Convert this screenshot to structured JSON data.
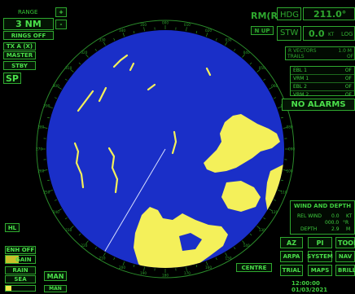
{
  "range": {
    "label": "RANGE",
    "value": "3 NM",
    "rings": "RINGS OFF",
    "plus": "+",
    "minus": "-"
  },
  "tx": {
    "label": "TX A (X)",
    "master": "MASTER",
    "stby": "STBY",
    "sp": "SP"
  },
  "mode": {
    "motion": "RM(R)",
    "orientation": "N UP"
  },
  "heading": {
    "label": "HDG",
    "value": "211.0°"
  },
  "speed": {
    "label": "STW",
    "value": "0.0",
    "unit": "KT",
    "source": "LOG"
  },
  "vectors": {
    "label": "R VECTORS",
    "value": "1.0 M",
    "trails_label": "TRAILS",
    "trails_value": "OF"
  },
  "ebl_vrm": [
    {
      "label": "EBL 1",
      "value": "OF"
    },
    {
      "label": "VRM 1",
      "value": "OF"
    },
    {
      "label": "EBL 2",
      "value": "OF"
    },
    {
      "label": "VRM 2",
      "value": "OF"
    }
  ],
  "alarms": "NO ALARMS",
  "bearing_ticks": [
    "000",
    "010",
    "020",
    "030",
    "040",
    "050",
    "060",
    "070",
    "080",
    "090",
    "100",
    "110",
    "120",
    "130",
    "140",
    "150",
    "160",
    "170",
    "180",
    "190",
    "200",
    "210",
    "220",
    "230",
    "240",
    "250",
    "260",
    "270",
    "280",
    "290",
    "300",
    "310",
    "320",
    "330",
    "340",
    "350"
  ],
  "hl": "HL",
  "enh": "ENH OFF",
  "gain": "GAIN",
  "rain": "RAIN",
  "sea": "SEA",
  "man1": "MAN",
  "man2": "MAN",
  "levels": {
    "gain": 0.45,
    "rain": 0.0,
    "sea": 0.2
  },
  "centre": "CENTRE",
  "wind_depth": {
    "title": "WIND AND DEPTH",
    "rel_wind_label": "REL WIND",
    "rel_wind_speed": "0.0",
    "rel_wind_speed_unit": "KT",
    "rel_wind_dir": "000.0",
    "rel_wind_dir_unit": "°R",
    "depth_label": "DEPTH",
    "depth_value": "2.9",
    "depth_unit": "M"
  },
  "buttons": {
    "az": "AZ",
    "pi": "PI",
    "tools": "TOOLS",
    "arpa": "ARPA",
    "system": "SYSTEM",
    "nav": "NAV",
    "trial": "TRIAL",
    "maps": "MAPS",
    "brill": "BRILL"
  },
  "datetime": "12:00:00 01/03/2021",
  "colors": {
    "radar_bg": "#1a2fc8",
    "echo": "#f4f05a",
    "ui_green": "#3fcf3f"
  }
}
